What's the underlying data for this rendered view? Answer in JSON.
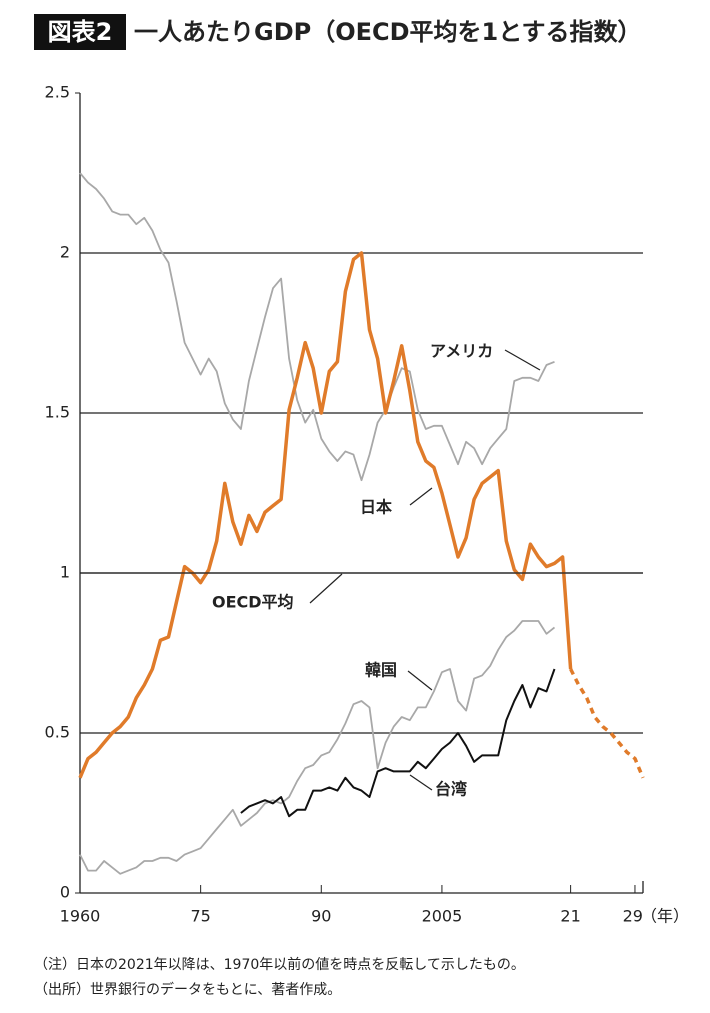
{
  "title_badge": "図表2",
  "title": "一人あたりGDP（OECD平均を1とする指数）",
  "notes": [
    "（注）日本の2021年以降は、1970年以前の値を時点を反転して示したもの。",
    "（出所）世界銀行のデータをもとに、著者作成。"
  ],
  "chart_data": {
    "type": "line",
    "x_unit": "（年）",
    "xlim": [
      1960,
      2030
    ],
    "ylim": [
      0,
      2.5
    ],
    "xticks": [
      1960,
      {
        "value": 1975,
        "label": "75"
      },
      {
        "value": 1990,
        "label": "90"
      },
      2005,
      {
        "value": 2021,
        "label": "21"
      },
      {
        "value": 2029,
        "label": "29"
      }
    ],
    "yticks": [
      0,
      0.5,
      1,
      1.5,
      2,
      2.5
    ],
    "grid": true,
    "series": [
      {
        "name": "アメリカ",
        "color": "#a8a8a8",
        "x": [
          1960,
          1961,
          1962,
          1963,
          1964,
          1965,
          1966,
          1967,
          1968,
          1969,
          1970,
          1971,
          1972,
          1973,
          1974,
          1975,
          1976,
          1977,
          1978,
          1979,
          1980,
          1981,
          1982,
          1983,
          1984,
          1985,
          1986,
          1987,
          1988,
          1989,
          1990,
          1991,
          1992,
          1993,
          1994,
          1995,
          1996,
          1997,
          1998,
          1999,
          2000,
          2001,
          2002,
          2003,
          2004,
          2005,
          2006,
          2007,
          2008,
          2009,
          2010,
          2011,
          2012,
          2013,
          2014,
          2015,
          2016,
          2017,
          2018,
          2019
        ],
        "values": [
          2.25,
          2.22,
          2.2,
          2.17,
          2.13,
          2.12,
          2.12,
          2.09,
          2.11,
          2.07,
          2.01,
          1.97,
          1.85,
          1.72,
          1.67,
          1.62,
          1.67,
          1.63,
          1.53,
          1.48,
          1.45,
          1.6,
          1.7,
          1.8,
          1.89,
          1.92,
          1.67,
          1.54,
          1.47,
          1.51,
          1.42,
          1.38,
          1.35,
          1.38,
          1.37,
          1.29,
          1.37,
          1.47,
          1.51,
          1.58,
          1.64,
          1.63,
          1.51,
          1.45,
          1.46,
          1.46,
          1.4,
          1.34,
          1.41,
          1.39,
          1.34,
          1.39,
          1.42,
          1.45,
          1.6,
          1.61,
          1.61,
          1.6,
          1.65,
          1.66
        ]
      },
      {
        "name": "日本",
        "color": "#e07b2a",
        "dashed_from": 2021,
        "x": [
          1960,
          1961,
          1962,
          1963,
          1964,
          1965,
          1966,
          1967,
          1968,
          1969,
          1970,
          1971,
          1972,
          1973,
          1974,
          1975,
          1976,
          1977,
          1978,
          1979,
          1980,
          1981,
          1982,
          1983,
          1984,
          1985,
          1986,
          1987,
          1988,
          1989,
          1990,
          1991,
          1992,
          1993,
          1994,
          1995,
          1996,
          1997,
          1998,
          1999,
          2000,
          2001,
          2002,
          2003,
          2004,
          2005,
          2006,
          2007,
          2008,
          2009,
          2010,
          2011,
          2012,
          2013,
          2014,
          2015,
          2016,
          2017,
          2018,
          2019,
          2020,
          2021,
          2022,
          2023,
          2024,
          2025,
          2026,
          2027,
          2028,
          2029,
          2030
        ],
        "values": [
          0.36,
          0.42,
          0.44,
          0.47,
          0.5,
          0.52,
          0.55,
          0.61,
          0.65,
          0.7,
          0.79,
          0.8,
          0.91,
          1.02,
          1.0,
          0.97,
          1.01,
          1.1,
          1.28,
          1.16,
          1.09,
          1.18,
          1.13,
          1.19,
          1.21,
          1.23,
          1.51,
          1.61,
          1.72,
          1.64,
          1.5,
          1.63,
          1.66,
          1.88,
          1.98,
          2.0,
          1.76,
          1.67,
          1.5,
          1.6,
          1.71,
          1.57,
          1.41,
          1.35,
          1.33,
          1.25,
          1.15,
          1.05,
          1.11,
          1.23,
          1.28,
          1.3,
          1.32,
          1.1,
          1.01,
          0.98,
          1.09,
          1.05,
          1.02,
          1.03,
          1.05,
          0.7,
          0.65,
          0.61,
          0.55,
          0.52,
          0.5,
          0.47,
          0.44,
          0.42,
          0.36
        ]
      },
      {
        "name": "OECD平均",
        "color": "#222222",
        "x": [
          1960,
          2030
        ],
        "values": [
          1,
          1
        ]
      },
      {
        "name": "韓国",
        "color": "#a8a8a8",
        "x": [
          1960,
          1961,
          1962,
          1963,
          1964,
          1965,
          1966,
          1967,
          1968,
          1969,
          1970,
          1971,
          1972,
          1973,
          1974,
          1975,
          1976,
          1977,
          1978,
          1979,
          1980,
          1981,
          1982,
          1983,
          1984,
          1985,
          1986,
          1987,
          1988,
          1989,
          1990,
          1991,
          1992,
          1993,
          1994,
          1995,
          1996,
          1997,
          1998,
          1999,
          2000,
          2001,
          2002,
          2003,
          2004,
          2005,
          2006,
          2007,
          2008,
          2009,
          2010,
          2011,
          2012,
          2013,
          2014,
          2015,
          2016,
          2017,
          2018,
          2019
        ],
        "values": [
          0.12,
          0.07,
          0.07,
          0.1,
          0.08,
          0.06,
          0.07,
          0.08,
          0.1,
          0.1,
          0.11,
          0.11,
          0.1,
          0.12,
          0.13,
          0.14,
          0.17,
          0.2,
          0.23,
          0.26,
          0.21,
          0.23,
          0.25,
          0.28,
          0.29,
          0.28,
          0.3,
          0.35,
          0.39,
          0.4,
          0.43,
          0.44,
          0.48,
          0.53,
          0.59,
          0.6,
          0.58,
          0.39,
          0.47,
          0.52,
          0.55,
          0.54,
          0.58,
          0.58,
          0.63,
          0.69,
          0.7,
          0.6,
          0.57,
          0.67,
          0.68,
          0.71,
          0.76,
          0.8,
          0.82,
          0.85,
          0.85,
          0.85,
          0.81,
          0.83
        ]
      },
      {
        "name": "台湾",
        "color": "#111111",
        "x": [
          1980,
          1981,
          1982,
          1983,
          1984,
          1985,
          1986,
          1987,
          1988,
          1989,
          1990,
          1991,
          1992,
          1993,
          1994,
          1995,
          1996,
          1997,
          1998,
          1999,
          2000,
          2001,
          2002,
          2003,
          2004,
          2005,
          2006,
          2007,
          2008,
          2009,
          2010,
          2011,
          2012,
          2013,
          2014,
          2015,
          2016,
          2017,
          2018,
          2019
        ],
        "values": [
          0.25,
          0.27,
          0.28,
          0.29,
          0.28,
          0.3,
          0.24,
          0.26,
          0.26,
          0.32,
          0.32,
          0.33,
          0.32,
          0.36,
          0.33,
          0.32,
          0.3,
          0.38,
          0.39,
          0.38,
          0.38,
          0.38,
          0.41,
          0.39,
          0.42,
          0.45,
          0.47,
          0.5,
          0.46,
          0.41,
          0.43,
          0.43,
          0.43,
          0.54,
          0.6,
          0.65,
          0.58,
          0.64,
          0.63,
          0.7
        ]
      }
    ]
  }
}
